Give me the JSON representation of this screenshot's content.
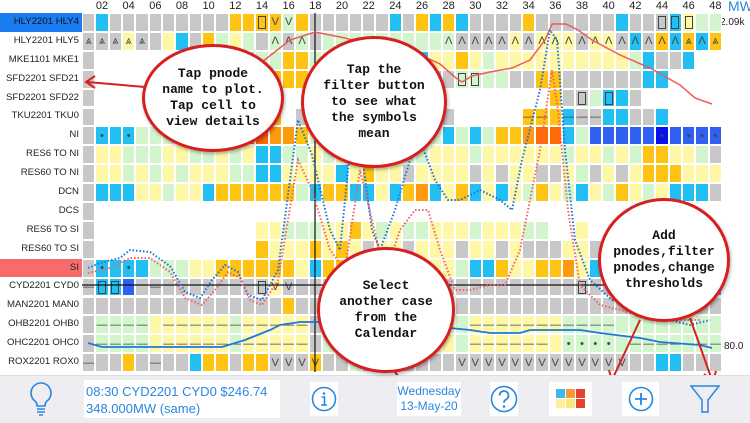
{
  "header": {
    "columns": [
      "02",
      "04",
      "06",
      "08",
      "10",
      "12",
      "14",
      "16",
      "18",
      "20",
      "22",
      "24",
      "26",
      "28",
      "30",
      "32",
      "34",
      "36",
      "38",
      "40",
      "42",
      "44",
      "46",
      "48"
    ],
    "unit": "MW",
    "max_label": "2.09k",
    "min_label": "80.0"
  },
  "palette": {
    "g": "#c8c8c8",
    "w": "#ffffff",
    "c": "#22bff2",
    "y": "#fdf7a6",
    "l": "#d3f5cd",
    "a": "#ffc313",
    "o": "#ff9a0c",
    "r": "#ff6a06",
    "b": "#3060f2",
    "n": "#0812ee"
  },
  "rows": [
    {
      "label": "HLY2201 HLY4",
      "selected": true,
      "colors": "gcgggggggggaaaalaggggggcgacacggggaggggggcgggcyllc",
      "symbols": ".............BVV...........................BBB.."
    },
    {
      "label": "HLY2201 HLY5",
      "colors": "gggyggycgalylglglgllllllllllggggygyyygyygcgacaca",
      "symbols": "TTTTTTTTTTAAAAAAAAAAAAAAAAAAAAAAAAAAAAAAAAAAATATT"
    },
    {
      "label": "MKE1101 MKE1",
      "colors": "gwwwwwwwwwwlglla allllllllcyyayly yyyyyyyyylcggcww",
      "symbols": "................................................"
    },
    {
      "label": "SFD2201 SFD21",
      "colors": "gwwwwwwwwwwwagaaagggggggggggllllggaaggggggccwwww",
      "symbols": "...........................BBB................"
    },
    {
      "label": "SFD2201 SFD22",
      "colors": "gwwwwwwwwwwwwwwwwwwwwwwwwwwwwwwwwwwagglccgwwwwwww",
      "symbols": ".....................................B.B........"
    },
    {
      "label": "TKU2201 TKU0",
      "colors": "gwwwwwwwwwwwwwawgwwwwwwwwwcgwwwwwaaacggccggcwwww",
      "symbols": ".................................--.---........."
    },
    {
      "label": "NI",
      "colors": "gccclllllllrrrooallllcllcclclclaaorrclbbbbbnbbbb",
      "symbols": ".*.*.......................................*.***"
    },
    {
      "label": "RES6 TO NI",
      "colors": "gyyllly yllylyccllylycylylly yylyyyyyylyylylaayyl",
      "symbols": "................................................"
    },
    {
      "label": "RES60 TO NI",
      "colors": "gyylylylyyyllccyyyycyayygyyyygyg yyggylgygyaaayyy",
      "symbols": "................................................"
    },
    {
      "label": "DCN",
      "colors": "gcccyylyycaaaaaalcaaccycaocyacycylaylcylaylyccc",
      "symbols": "................................................"
    },
    {
      "label": "DCS",
      "colors": "gwwwwwwwwwwwwwwwwwwwwwwwwwwwwwwwwwwwwwwwwwwwwwww",
      "symbols": "................................................"
    },
    {
      "label": "RES6 TO SI",
      "colors": "gwwwwwwwwwwwwyylllyyaylyllyyylyyyllwwywwwwwwwwww",
      "symbols": "................................................"
    },
    {
      "label": "RES60 TO SI",
      "colors": "gwwwwwwwwwwwwayyyayaygyygyyygyygyggg yyggwwwwwwww",
      "symbols": "................................................"
    },
    {
      "label": "SI",
      "colors": "gcccclllyyaaaaaaycaacly aaayylccayyaaoyccccylgaycw",
      "symbols": ".*.*............................................"
    },
    {
      "label": "CYD2201 CYD0",
      "colors": "gccbggggggggggyggggggggggggggggggggggggggggggggcw",
      "symbols": "-BB..-.......BVV.....................B.........."
    },
    {
      "label": "MAN2201 MAN0",
      "colors": "gggggggggggggggaggggggggggggggggggggggggggggggggg",
      "symbols": "................................................"
    },
    {
      "label": "OHB2201 OHB0",
      "colors": "gllllyyyyyylyyyyyglylyyyllyylyyyyyyylllllllllllla",
      "symbols": ".----.-----------------------------------*-----"
    },
    {
      "label": "OHC2201 OHC0",
      "colors": "gllllyyyyyylyyyyyglylyyyllyylyyyyyyylllllllllllla",
      "symbols": ".----.-----------------------------.****.-------"
    },
    {
      "label": "ROX2201 ROX0",
      "colors": "gggaggggcaagaagggagglggggggggggggggggggggggccggg",
      "symbols": "-....-........VVVVVVVVVVVVVVVVVVVVVVVVVVV......."
    }
  ],
  "callouts": [
    {
      "text": "Tap pnode\nname to plot.\nTap cell to\nview details"
    },
    {
      "text": "Tap the\nfilter button\nto see what\nthe symbols\nmean"
    },
    {
      "text": "Select\nanother case\nfrom the\nCalendar"
    },
    {
      "text": "Add\npnodes,filter\npnodes,change\nthresholds"
    }
  ],
  "bottom_bar": {
    "status_line1": "08:30 CYD2201 CYD0 $246.74",
    "status_line2": "348.000MW (same)",
    "day": "Wednesday",
    "date": "13-May-20",
    "icons": [
      "lightbulb-icon",
      "info-icon",
      "help-icon",
      "color-palette-icon",
      "add-icon",
      "filter-icon"
    ]
  }
}
